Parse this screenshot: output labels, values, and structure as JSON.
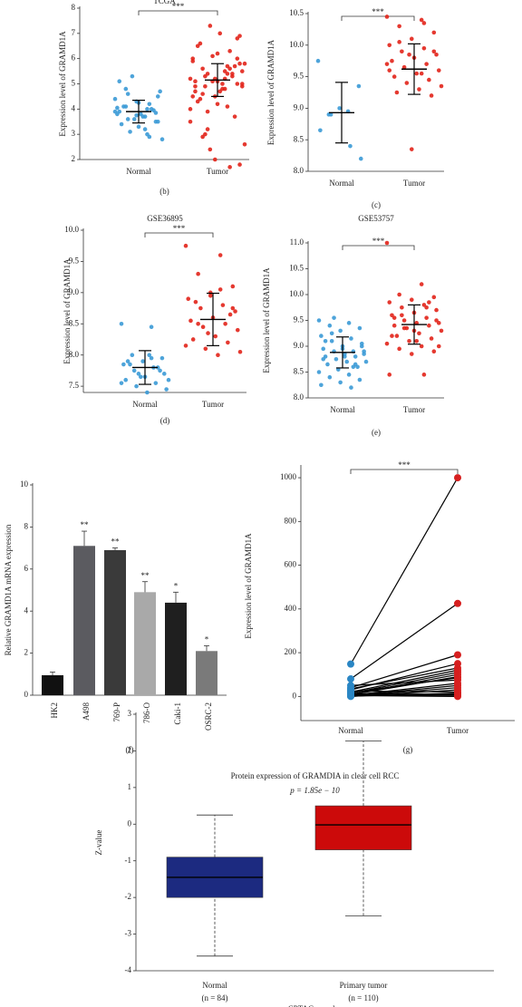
{
  "chart_data": [
    {
      "type": "strip",
      "title": "TCGA",
      "caption": "(b)",
      "ylabel": "Expression level of GRAMD1A",
      "annotation": "***",
      "categories": [
        "Normal",
        "Tumor"
      ],
      "colors": [
        "#3b9ad6",
        "#e2231a"
      ],
      "values": [
        [
          3.9,
          3.7,
          4.1,
          3.5,
          4.3,
          3.8,
          4.0,
          3.6,
          4.5,
          3.3,
          3.9,
          4.2,
          3.1,
          4.7,
          3.8,
          3.4,
          4.0,
          5.3,
          2.8,
          3.7,
          4.1,
          3.95,
          3.6,
          4.4,
          3.2,
          4.8,
          3.85,
          3.75,
          4.05,
          3.0,
          4.6,
          3.5,
          4.25,
          5.1,
          2.9
        ],
        [
          5.2,
          4.8,
          5.6,
          5.0,
          4.5,
          6.0,
          5.4,
          4.9,
          5.8,
          4.2,
          5.1,
          6.3,
          3.9,
          5.5,
          4.7,
          6.5,
          5.3,
          7.3,
          2.6,
          5.0,
          4.4,
          5.7,
          6.1,
          3.5,
          5.2,
          4.6,
          6.8,
          2.0,
          5.9,
          4.1,
          5.3,
          1.8,
          6.2,
          4.9,
          5.6,
          3.2,
          5.0,
          7.0,
          4.3,
          5.4,
          2.4,
          5.8,
          4.8,
          6.6,
          3.7,
          5.1,
          4.0,
          5.5,
          2.9,
          6.0,
          5.2,
          4.5,
          5.7,
          3.0,
          6.9,
          5.1,
          4.7,
          1.7,
          5.4,
          4.9
        ]
      ],
      "mean": [
        3.9,
        5.15
      ],
      "sd": [
        0.45,
        0.65
      ],
      "ylim": [
        2,
        8
      ],
      "yticks": [
        2,
        3,
        4,
        5,
        6,
        7,
        8
      ]
    },
    {
      "type": "strip",
      "caption": "(c)",
      "ylabel": "Expression level of GRAMD1A",
      "annotation": "***",
      "categories": [
        "Normal",
        "Tumor"
      ],
      "colors": [
        "#3b9ad6",
        "#e2231a"
      ],
      "values": [
        [
          9.75,
          8.95,
          8.9,
          9.35,
          9.0,
          8.65,
          8.4,
          8.9,
          8.2
        ],
        [
          10.45,
          10.4,
          10.3,
          10.2,
          10.1,
          10.0,
          9.95,
          9.9,
          9.85,
          9.8,
          9.75,
          9.7,
          9.65,
          9.6,
          9.55,
          9.5,
          9.45,
          9.4,
          9.35,
          9.3,
          9.25,
          9.2,
          9.85,
          9.7,
          9.55,
          10.05,
          9.9,
          8.35,
          9.6,
          10.35
        ]
      ],
      "mean": [
        8.93,
        9.62
      ],
      "sd": [
        0.48,
        0.4
      ],
      "ylim": [
        8,
        10.5
      ],
      "yticks": [
        {
          "value": 8,
          "label": "8.0"
        },
        {
          "value": 8.5,
          "label": "8.5"
        },
        {
          "value": 9,
          "label": "9.0"
        },
        {
          "value": 9.5,
          "label": "9.5"
        },
        {
          "value": 10,
          "label": "10.0"
        },
        {
          "value": 10.5,
          "label": "10.5"
        }
      ]
    },
    {
      "type": "strip",
      "title": "GSE36895",
      "caption": "(d)",
      "ylabel": "Expression level of GRAMD1A",
      "annotation": "***",
      "categories": [
        "Normal",
        "Tumor"
      ],
      "colors": [
        "#3b9ad6",
        "#e2231a"
      ],
      "values": [
        [
          8.5,
          8.45,
          8.0,
          7.95,
          7.9,
          7.85,
          7.8,
          7.75,
          7.7,
          7.65,
          7.6,
          7.55,
          7.5,
          7.45,
          7.4,
          7.9,
          7.8,
          7.7,
          7.6,
          8.0,
          7.85,
          7.75,
          7.65,
          7.55,
          7.95
        ],
        [
          9.75,
          9.6,
          9.3,
          9.1,
          9.0,
          8.9,
          8.8,
          8.75,
          8.7,
          8.6,
          8.55,
          8.5,
          8.45,
          8.4,
          8.3,
          8.25,
          8.2,
          8.1,
          8.05,
          8.0,
          8.85,
          8.65,
          8.35,
          8.15,
          9.05,
          8.5,
          8.75,
          8.95
        ]
      ],
      "mean": [
        7.8,
        8.57
      ],
      "sd": [
        0.27,
        0.42
      ],
      "ylim": [
        7.4,
        10
      ],
      "yticks": [
        {
          "value": 7.5,
          "label": "7.5"
        },
        {
          "value": 8,
          "label": "8.0"
        },
        {
          "value": 8.5,
          "label": "8.5"
        },
        {
          "value": 9,
          "label": "9.0"
        },
        {
          "value": 9.5,
          "label": "9.5"
        },
        {
          "value": 10,
          "label": "10.0"
        }
      ]
    },
    {
      "type": "strip",
      "title": "GSE53757",
      "caption": "(e)",
      "ylabel": "Expression level of GRAMD1A",
      "annotation": "***",
      "categories": [
        "Normal",
        "Tumor"
      ],
      "colors": [
        "#3b9ad6",
        "#e2231a"
      ],
      "values": [
        [
          9.5,
          9.45,
          9.4,
          9.35,
          9.3,
          9.2,
          9.15,
          9.1,
          9.05,
          9.0,
          8.95,
          8.9,
          8.9,
          8.85,
          8.85,
          8.8,
          8.8,
          8.75,
          8.7,
          8.7,
          8.65,
          8.6,
          8.55,
          8.5,
          8.45,
          8.4,
          8.35,
          8.3,
          8.25,
          8.2,
          9.25,
          9.0,
          8.95,
          8.75,
          8.6,
          9.55,
          8.9,
          8.8,
          9.1,
          8.65
        ],
        [
          11.0,
          10.2,
          10.0,
          9.95,
          9.9,
          9.85,
          9.8,
          9.75,
          9.7,
          9.65,
          9.6,
          9.55,
          9.5,
          9.45,
          9.45,
          9.4,
          9.4,
          9.35,
          9.3,
          9.25,
          9.2,
          9.15,
          9.1,
          9.05,
          9.0,
          8.95,
          8.9,
          8.85,
          8.45,
          8.45,
          9.6,
          9.5,
          9.3,
          9.2,
          9.75,
          9.35,
          9.0,
          9.1,
          9.55,
          9.85
        ]
      ],
      "mean": [
        8.88,
        9.42
      ],
      "sd": [
        0.3,
        0.38
      ],
      "ylim": [
        8,
        11
      ],
      "yticks": [
        {
          "value": 8,
          "label": "8.0"
        },
        {
          "value": 8.5,
          "label": "8.5"
        },
        {
          "value": 9,
          "label": "9.0"
        },
        {
          "value": 9.5,
          "label": "9.5"
        },
        {
          "value": 10,
          "label": "10.0"
        },
        {
          "value": 10.5,
          "label": "10.5"
        },
        {
          "value": 11,
          "label": "11.0"
        }
      ]
    },
    {
      "type": "bar",
      "caption": "(f)",
      "ylabel": "Relative GRAMD1A mRNA expression",
      "categories": [
        "HK2",
        "A498",
        "769-P",
        "786-O",
        "Caki-1",
        "OSRC-2"
      ],
      "values": [
        0.95,
        7.1,
        6.9,
        4.9,
        4.4,
        2.1
      ],
      "errors": [
        0.15,
        0.7,
        0.1,
        0.5,
        0.5,
        0.25
      ],
      "value_labels": [
        null,
        "**",
        "**",
        "**",
        "*",
        "*"
      ],
      "colors": [
        "#111111",
        "#5b5b60",
        "#3a3a3a",
        "#a9a9a9",
        "#1f1f1f",
        "#7a7a7a"
      ],
      "ylim": [
        0,
        10
      ],
      "yticks": [
        0,
        2,
        4,
        6,
        8,
        10
      ]
    },
    {
      "type": "paired",
      "caption": "(g)",
      "ylabel": "Expression level of GRAMD1A",
      "annotation": "***",
      "categories": [
        "Normal",
        "Tumor"
      ],
      "colors": [
        "#2a86c4",
        "#d61f1f"
      ],
      "normal": [
        148,
        80,
        40,
        30,
        20,
        15,
        10,
        8,
        5,
        3,
        2,
        0,
        25,
        12,
        6,
        50,
        35,
        18,
        4,
        1
      ],
      "tumor": [
        1000,
        425,
        190,
        150,
        120,
        110,
        100,
        90,
        60,
        50,
        40,
        30,
        20,
        10,
        5,
        75,
        130,
        85,
        0,
        15
      ],
      "ylim": [
        -40,
        1050
      ],
      "yticks": [
        0,
        200,
        400,
        600,
        800,
        1000
      ]
    },
    {
      "type": "box",
      "title": "Protein expression of GRAMDIA in clear cell RCC",
      "subtitle": "p = 1.85e − 10",
      "ylabel": "Z-value",
      "xlabel": "CPTAC samples",
      "categories": [
        "Normal",
        "Primary tumor"
      ],
      "sample_labels": [
        "(n = 84)",
        "(n = 110)"
      ],
      "colors": [
        "#1c2a80",
        "#cc0a0a"
      ],
      "boxes": [
        {
          "whislo": -3.6,
          "q1": -2.0,
          "med": -1.45,
          "q3": -0.9,
          "whishi": 0.25
        },
        {
          "whislo": -2.5,
          "q1": -0.7,
          "med": -0.02,
          "q3": 0.5,
          "whishi": 2.27
        }
      ],
      "ylim": [
        -4,
        3
      ],
      "yticks": [
        -4,
        -3,
        -2,
        -1,
        0,
        1,
        2,
        3
      ]
    }
  ]
}
